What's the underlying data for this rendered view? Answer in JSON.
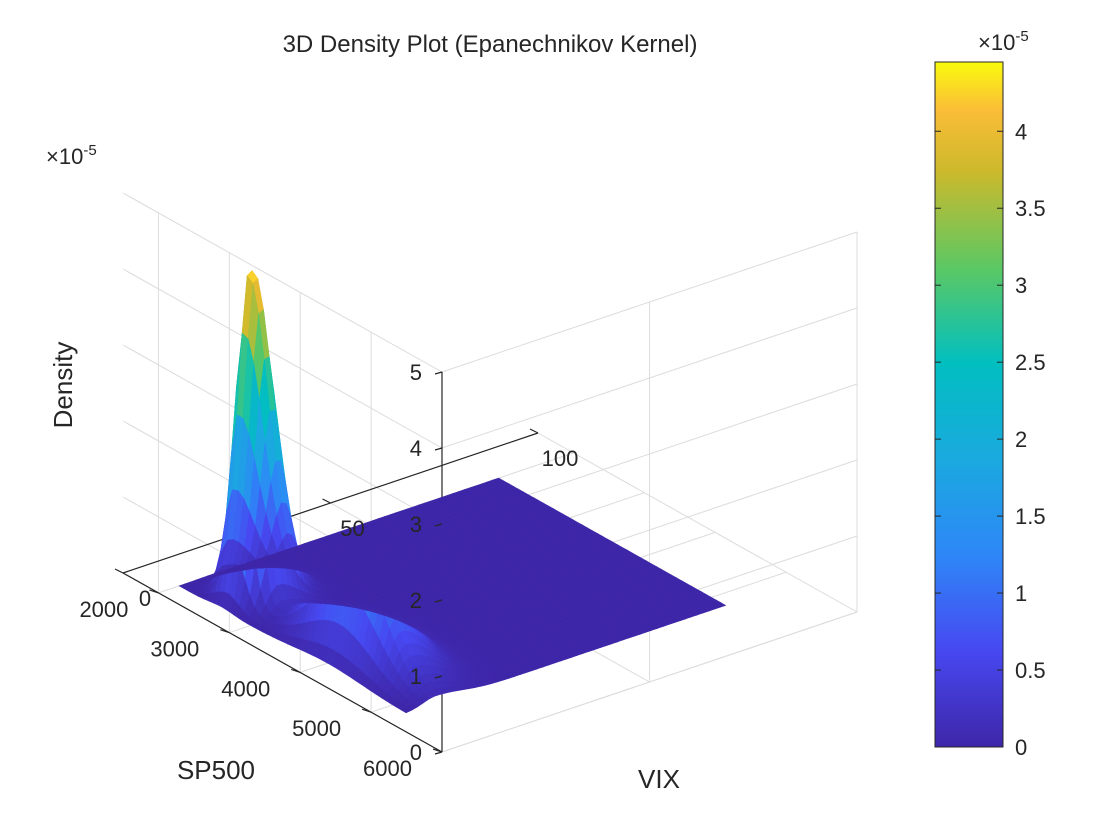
{
  "chart_data": {
    "type": "surface",
    "title": "3D Density Plot (Epanechnikov Kernel)",
    "xlabel": "VIX",
    "ylabel": "SP500",
    "zlabel": "Density",
    "xlim": [
      0,
      100
    ],
    "ylim": [
      1500,
      6000
    ],
    "zlim": [
      0,
      5e-05
    ],
    "xticks": [
      "0",
      "50",
      "100"
    ],
    "yticks": [
      "2000",
      "3000",
      "4000",
      "5000",
      "6000"
    ],
    "zticks": [
      "0",
      "1",
      "2",
      "3",
      "4",
      "5"
    ],
    "z_exponent": "×10",
    "z_exponent_power": "-5",
    "colormap": "parula",
    "grid": true,
    "colorbar": {
      "location": "right",
      "ticks": [
        "0",
        "0.5",
        "1",
        "1.5",
        "2",
        "2.5",
        "3",
        "3.5",
        "4"
      ],
      "clim": [
        0,
        4.45e-05
      ],
      "exponent": "×10",
      "exponent_power": "-5"
    },
    "density_peaks": [
      {
        "vix": 12,
        "sp500": 4100,
        "density": 1.7e-05
      },
      {
        "vix": 12,
        "sp500": 2600,
        "density": 4.4e-05
      }
    ],
    "data_extent": {
      "vix": [
        5,
        82
      ],
      "sp500": [
        2000,
        5200
      ]
    }
  }
}
